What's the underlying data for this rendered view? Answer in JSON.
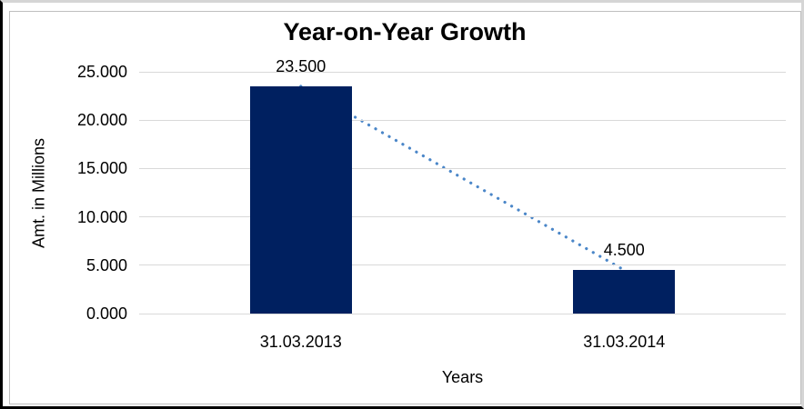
{
  "chart_data": {
    "type": "bar",
    "title": "Year-on-Year Growth",
    "xlabel": "Years",
    "ylabel": "Amt. in Millions",
    "categories": [
      "31.03.2013",
      "31.03.2014"
    ],
    "values": [
      23.5,
      4.5
    ],
    "data_labels": [
      "23.500",
      "4.500"
    ],
    "ylim": [
      0,
      25
    ],
    "yticks": [
      {
        "value": 0,
        "label": "0.000"
      },
      {
        "value": 5,
        "label": "5.000"
      },
      {
        "value": 10,
        "label": "10.000"
      },
      {
        "value": 15,
        "label": "15.000"
      },
      {
        "value": 20,
        "label": "20.000"
      },
      {
        "value": 25,
        "label": "25.000"
      }
    ],
    "grid": true,
    "legend": "none",
    "bar_color": "#002060",
    "gridline_color": "#d9d9d9",
    "trendline": {
      "style": "dotted",
      "color": "#4a86c8",
      "connects": "bar tops (23.500 to 4.500)"
    },
    "text_color": "#000000"
  }
}
